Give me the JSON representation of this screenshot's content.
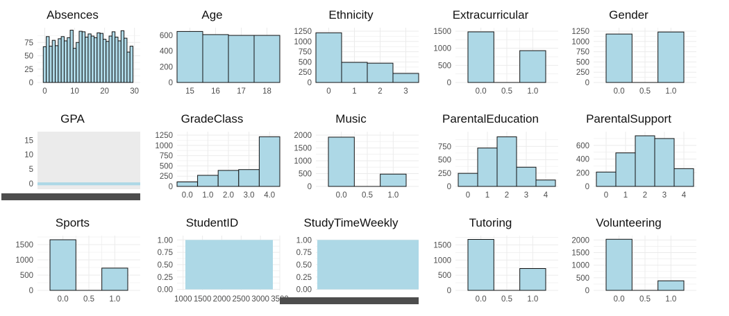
{
  "chart_data": [
    {
      "type": "bar",
      "title": "Absences",
      "style": "bars",
      "x": [
        0,
        1,
        2,
        3,
        4,
        5,
        6,
        7,
        8,
        9,
        10,
        11,
        12,
        13,
        14,
        15,
        16,
        17,
        18,
        19,
        20,
        21,
        22,
        23,
        24,
        25,
        26,
        27,
        28,
        29
      ],
      "values": [
        67,
        86,
        68,
        79,
        69,
        82,
        86,
        78,
        84,
        98,
        64,
        75,
        96,
        95,
        85,
        91,
        87,
        84,
        93,
        92,
        81,
        77,
        87,
        95,
        85,
        78,
        97,
        83,
        57,
        68
      ],
      "xticks": [
        "0",
        "10",
        "20",
        "30"
      ],
      "xtick_values": [
        0,
        10,
        20,
        30
      ],
      "xlim": [
        -1.5,
        31
      ],
      "yticks": [
        "0",
        "25",
        "50",
        "75"
      ],
      "ytick_values": [
        0,
        25,
        50,
        75
      ],
      "ylim": [
        0,
        100
      ]
    },
    {
      "type": "bar",
      "title": "Age",
      "categories": [
        "15",
        "16",
        "17",
        "18"
      ],
      "values": [
        650,
        610,
        600,
        600
      ],
      "yticks": [
        "0",
        "200",
        "400",
        "600"
      ],
      "ytick_values": [
        0,
        200,
        400,
        600
      ],
      "ylim": [
        0,
        680
      ]
    },
    {
      "type": "bar",
      "title": "Ethnicity",
      "categories": [
        "0",
        "1",
        "2",
        "3"
      ],
      "values": [
        1210,
        490,
        470,
        220
      ],
      "yticks": [
        "0",
        "250",
        "500",
        "750",
        "1000",
        "1250"
      ],
      "ytick_values": [
        0,
        250,
        500,
        750,
        1000,
        1250
      ],
      "ylim": [
        0,
        1300
      ]
    },
    {
      "type": "bar",
      "title": "Extracurricular",
      "style": "binary",
      "values": [
        1480,
        0,
        930
      ],
      "xticks": [
        "0.0",
        "0.5",
        "1.0"
      ],
      "yticks": [
        "0",
        "500",
        "1000",
        "1500"
      ],
      "ytick_values": [
        0,
        500,
        1000,
        1500
      ],
      "ylim": [
        0,
        1560
      ]
    },
    {
      "type": "bar",
      "title": "Gender",
      "style": "binary",
      "values": [
        1180,
        0,
        1230
      ],
      "xticks": [
        "0.0",
        "0.5",
        "1.0"
      ],
      "yticks": [
        "0",
        "250",
        "500",
        "750",
        "1000",
        "1250"
      ],
      "ytick_values": [
        0,
        250,
        500,
        750,
        1000,
        1250
      ],
      "ylim": [
        0,
        1300
      ]
    },
    {
      "type": "bar",
      "title": "GPA",
      "style": "degenerate",
      "yticks": [
        "0",
        "5",
        "10",
        "15"
      ],
      "ytick_values": [
        0,
        5,
        10,
        15
      ],
      "ylim": [
        -1,
        17.5
      ]
    },
    {
      "type": "bar",
      "title": "GradeClass",
      "categories": [
        "0.0",
        "1.0",
        "2.0",
        "3.0",
        "4.0"
      ],
      "values": [
        110,
        270,
        390,
        410,
        1210
      ],
      "yticks": [
        "0",
        "250",
        "500",
        "750",
        "1000",
        "1250"
      ],
      "ytick_values": [
        0,
        250,
        500,
        750,
        1000,
        1250
      ],
      "ylim": [
        0,
        1300
      ]
    },
    {
      "type": "bar",
      "title": "Music",
      "style": "binary",
      "values": [
        1920,
        0,
        480
      ],
      "xticks": [
        "0.0",
        "0.5",
        "1.0"
      ],
      "yticks": [
        "0",
        "500",
        "1000",
        "1500",
        "2000"
      ],
      "ytick_values": [
        0,
        500,
        1000,
        1500,
        2000
      ],
      "ylim": [
        0,
        2080
      ]
    },
    {
      "type": "bar",
      "title": "ParentalEducation",
      "style": "bars",
      "x": [
        0,
        1,
        2,
        3,
        4
      ],
      "values": [
        245,
        720,
        930,
        360,
        120
      ],
      "xticks": [
        "0",
        "1",
        "2",
        "3",
        "4"
      ],
      "xtick_values": [
        0,
        1,
        2,
        3,
        4
      ],
      "xlim": [
        -0.5,
        4.5
      ],
      "yticks": [
        "0",
        "250",
        "500",
        "750"
      ],
      "ytick_values": [
        0,
        250,
        500,
        750
      ],
      "ylim": [
        0,
        1000
      ]
    },
    {
      "type": "bar",
      "title": "ParentalSupport",
      "style": "bars",
      "x": [
        0,
        1,
        2,
        3,
        4
      ],
      "values": [
        210,
        490,
        740,
        700,
        260
      ],
      "xticks": [
        "0",
        "1",
        "2",
        "3",
        "4"
      ],
      "xtick_values": [
        0,
        1,
        2,
        3,
        4
      ],
      "xlim": [
        -0.5,
        4.5
      ],
      "yticks": [
        "0",
        "200",
        "400",
        "600"
      ],
      "ytick_values": [
        0,
        200,
        400,
        600
      ],
      "ylim": [
        0,
        780
      ]
    },
    {
      "type": "bar",
      "title": "Sports",
      "style": "binary",
      "values": [
        1660,
        0,
        730
      ],
      "xticks": [
        "0.0",
        "0.5",
        "1.0"
      ],
      "yticks": [
        "0",
        "500",
        "1000",
        "1500"
      ],
      "ytick_values": [
        0,
        500,
        1000,
        1500
      ],
      "ylim": [
        0,
        1750
      ]
    },
    {
      "type": "bar",
      "title": "StudentID",
      "style": "filled",
      "xticks": [
        "1000",
        "1500",
        "2000",
        "2500",
        "3000",
        "3500"
      ],
      "xtick_values": [
        1000,
        1500,
        2000,
        2500,
        3000,
        3500
      ],
      "xlim": [
        950,
        3500
      ],
      "yticks": [
        "0.00",
        "0.25",
        "0.50",
        "0.75",
        "1.00"
      ],
      "ytick_values": [
        0,
        0.25,
        0.5,
        0.75,
        1
      ],
      "ylim": [
        -0.02,
        1.06
      ]
    },
    {
      "type": "bar",
      "title": "StudyTimeWeekly",
      "style": "filled-degenerate",
      "yticks": [
        "0.00",
        "0.25",
        "0.50",
        "0.75",
        "1.00"
      ],
      "ytick_values": [
        0,
        0.25,
        0.5,
        0.75,
        1
      ],
      "ylim": [
        -0.02,
        1.06
      ]
    },
    {
      "type": "bar",
      "title": "Tutoring",
      "style": "binary",
      "values": [
        1680,
        0,
        720
      ],
      "xticks": [
        "0.0",
        "0.5",
        "1.0"
      ],
      "yticks": [
        "0",
        "500",
        "1000",
        "1500"
      ],
      "ytick_values": [
        0,
        500,
        1000,
        1500
      ],
      "ylim": [
        0,
        1760
      ]
    },
    {
      "type": "bar",
      "title": "Volunteering",
      "style": "binary",
      "values": [
        2030,
        0,
        380
      ],
      "xticks": [
        "0.0",
        "0.5",
        "1.0"
      ],
      "yticks": [
        "0",
        "500",
        "1000",
        "1500",
        "2000"
      ],
      "ytick_values": [
        0,
        500,
        1000,
        1500,
        2000
      ],
      "ylim": [
        0,
        2120
      ]
    }
  ],
  "colors": {
    "bar_fill": "#add8e6",
    "bar_outline": "#111111",
    "grid": "#ebebeb",
    "text": "#4d4d4d",
    "title": "#111111",
    "degenerate_panel": "#ebebeb",
    "overflow_bar": "#4d4d4d"
  }
}
